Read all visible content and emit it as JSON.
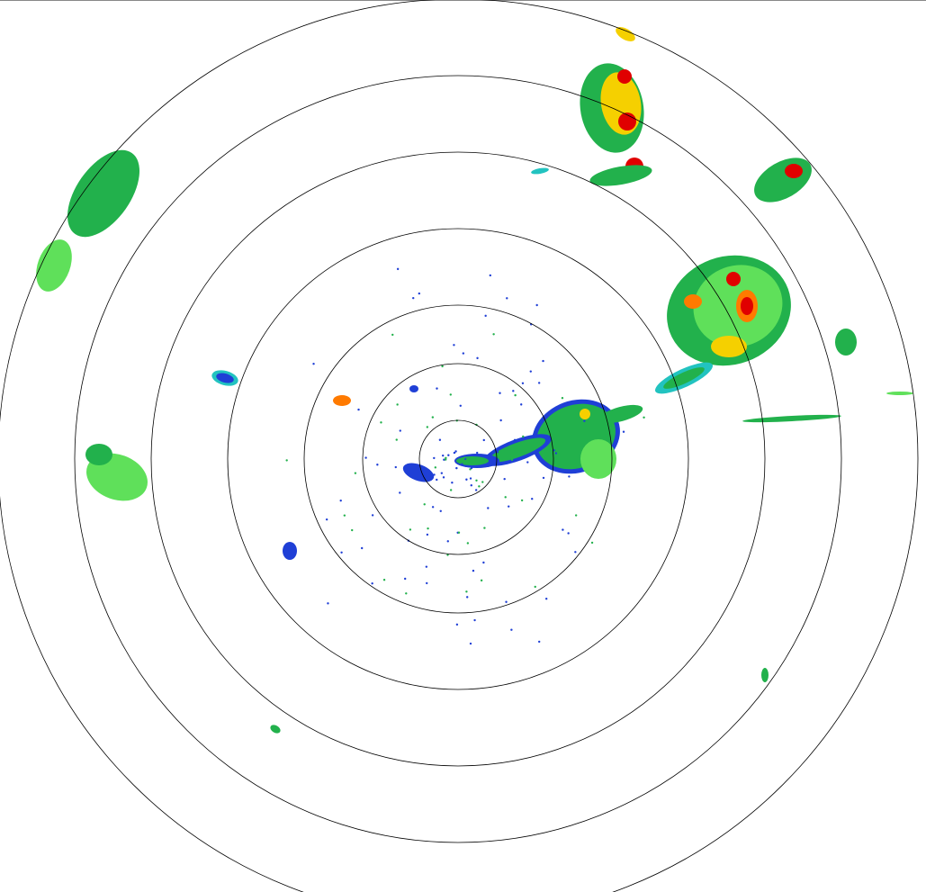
{
  "display": {
    "type": "radar-ppi",
    "range_ring_count": 7,
    "ring_color": "#000000",
    "background": "#ffffff"
  },
  "reflectivity_palette": {
    "weak": "#1f3fd6",
    "light": "#22c3c0",
    "moderate": "#22b14c",
    "moderate_light": "#5fe05a",
    "heavy": "#f5d000",
    "intense": "#ff7a00",
    "extreme": "#e00000"
  }
}
